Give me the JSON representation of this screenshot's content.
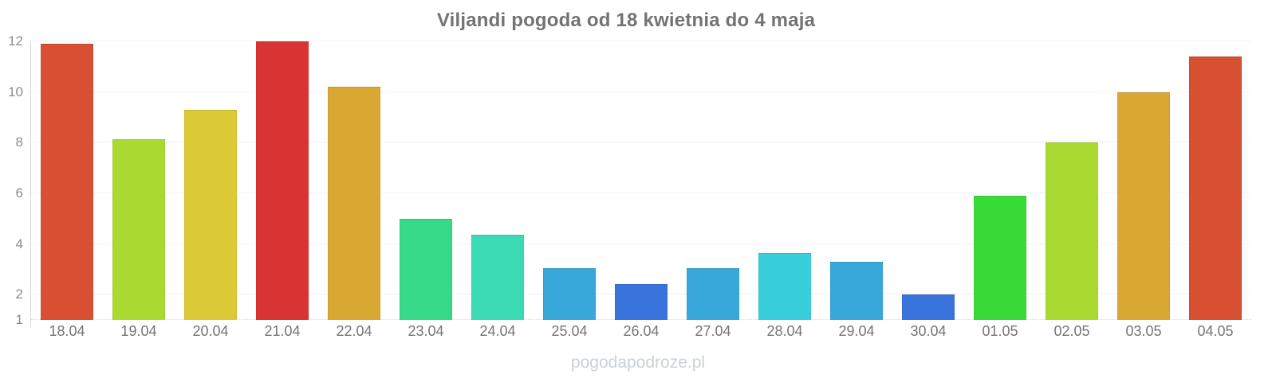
{
  "title": "Viljandi pogoda od 18 kwietnia do 4 maja",
  "watermark": "pogodapodroze.pl",
  "chart_data": {
    "type": "bar",
    "title": "Viljandi pogoda od 18 kwietnia do 4 maja",
    "categories": [
      "18.04",
      "19.04",
      "20.04",
      "21.04",
      "22.04",
      "23.04",
      "24.04",
      "25.04",
      "26.04",
      "27.04",
      "28.04",
      "29.04",
      "30.04",
      "01.05",
      "02.05",
      "03.05",
      "04.05"
    ],
    "values": [
      11.9,
      8.15,
      9.3,
      12.0,
      10.2,
      5.0,
      4.35,
      3.05,
      2.4,
      3.05,
      3.65,
      3.3,
      2.0,
      5.9,
      8.0,
      10.0,
      11.4
    ],
    "bar_colors": [
      "#d94f32",
      "#aada32",
      "#dbc935",
      "#d93434",
      "#d9a833",
      "#36d985",
      "#3adab4",
      "#38a8db",
      "#3874dc",
      "#38a8db",
      "#38cedb",
      "#38a8db",
      "#3874dc",
      "#38db38",
      "#aada32",
      "#d9a833",
      "#d94f32"
    ],
    "xlabel": "",
    "ylabel": "",
    "ylim": [
      1,
      12
    ],
    "yticks": [
      1,
      2,
      4,
      6,
      8,
      10,
      12
    ],
    "grid": true,
    "legend": false,
    "colors": {
      "title": "#737373",
      "y_tick_label": "#8c8c8c",
      "x_tick_label": "#757575",
      "gridline": "#e4e4e4",
      "axis_line": "#d6d6d6",
      "watermark": "#ccd1d6",
      "background": "#ffffff"
    }
  }
}
